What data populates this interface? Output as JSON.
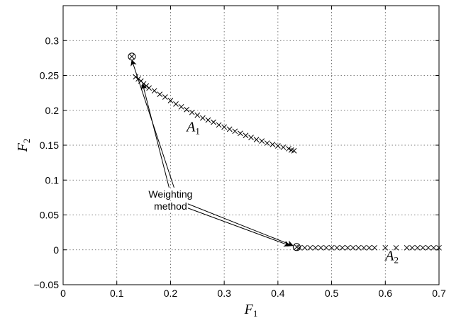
{
  "chart_data": {
    "type": "scatter",
    "title": "",
    "xlabel": {
      "main": "F",
      "sub": "1"
    },
    "ylabel": {
      "main": "F",
      "sub": "2"
    },
    "xlim": [
      0,
      0.7
    ],
    "ylim": [
      -0.05,
      0.35
    ],
    "grid": true,
    "xticks": [
      0,
      0.1,
      0.2,
      0.3,
      0.4,
      0.5,
      0.6,
      0.7
    ],
    "yticks": [
      -0.05,
      0,
      0.05,
      0.1,
      0.15,
      0.2,
      0.25,
      0.3
    ],
    "xtick_labels": [
      "0",
      "0.1",
      "0.2",
      "0.3",
      "0.4",
      "0.5",
      "0.6",
      "0.7"
    ],
    "ytick_labels": [
      "−0.05",
      "0",
      "0.05",
      "0.1",
      "0.15",
      "0.2",
      "0.25",
      "0.3"
    ],
    "series": [
      {
        "name": "A1",
        "label": {
          "main": "A",
          "sub": "1",
          "at": [
            0.23,
            0.17
          ]
        },
        "marker": "x",
        "x": [
          0.135,
          0.14,
          0.145,
          0.15,
          0.155,
          0.16,
          0.17,
          0.18,
          0.19,
          0.2,
          0.21,
          0.22,
          0.23,
          0.24,
          0.25,
          0.26,
          0.27,
          0.28,
          0.29,
          0.3,
          0.31,
          0.32,
          0.33,
          0.34,
          0.35,
          0.36,
          0.37,
          0.38,
          0.39,
          0.4,
          0.41,
          0.42,
          0.425,
          0.43
        ],
        "y": [
          0.248,
          0.245,
          0.242,
          0.238,
          0.235,
          0.232,
          0.228,
          0.223,
          0.219,
          0.214,
          0.209,
          0.205,
          0.201,
          0.197,
          0.193,
          0.189,
          0.186,
          0.183,
          0.179,
          0.176,
          0.173,
          0.17,
          0.167,
          0.164,
          0.161,
          0.158,
          0.156,
          0.153,
          0.151,
          0.149,
          0.147,
          0.145,
          0.143,
          0.142
        ]
      },
      {
        "name": "A2",
        "label": {
          "main": "A",
          "sub": "2",
          "at": [
            0.6,
            -0.015
          ]
        },
        "marker": "x",
        "x": [
          0.44,
          0.45,
          0.46,
          0.47,
          0.48,
          0.49,
          0.5,
          0.51,
          0.52,
          0.53,
          0.54,
          0.55,
          0.56,
          0.57,
          0.58,
          0.6,
          0.62,
          0.64,
          0.65,
          0.66,
          0.67,
          0.68,
          0.69,
          0.7
        ],
        "y": [
          0.003,
          0.003,
          0.003,
          0.003,
          0.003,
          0.003,
          0.003,
          0.003,
          0.003,
          0.003,
          0.003,
          0.003,
          0.003,
          0.003,
          0.003,
          0.003,
          0.003,
          0.003,
          0.003,
          0.003,
          0.003,
          0.003,
          0.003,
          0.003
        ]
      },
      {
        "name": "Weighting method",
        "marker": "circle-x",
        "x": [
          0.128,
          0.435
        ],
        "y": [
          0.277,
          0.004
        ]
      }
    ],
    "annotations": [
      {
        "text_lines": [
          "Weighting",
          "method"
        ],
        "at": [
          0.2,
          0.075
        ],
        "arrows_to": [
          [
            0.128,
            0.272
          ],
          [
            0.148,
            0.238
          ],
          [
            0.428,
            0.006
          ],
          [
            0.422,
            0.006
          ]
        ]
      }
    ]
  }
}
